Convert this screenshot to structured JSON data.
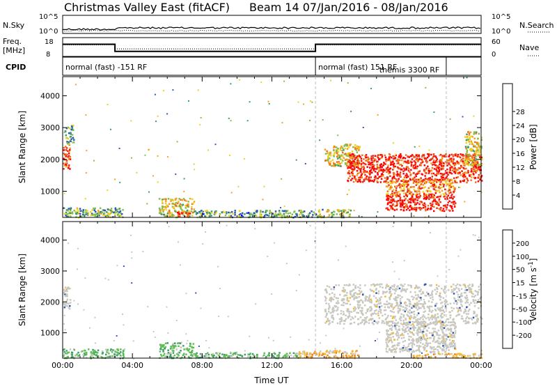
{
  "header": {
    "title_left": "Christmas Valley East (fitACF)",
    "title_right": "Beam 14  07/Jan/2016 - 08/Jan/2016"
  },
  "noise_panel": {
    "left_label": "N.Sky",
    "right_label": "N.Search",
    "left_ticks": [
      "10^5",
      "10^0"
    ],
    "right_ticks": [
      "10^5",
      "10^0"
    ]
  },
  "freq_panel": {
    "left_label_1": "Freq.",
    "left_label_2": "[MHz]",
    "right_label": "Nave",
    "left_ticks": [
      "18",
      "8"
    ],
    "right_ticks": [
      "60",
      "0"
    ],
    "freq_mhz": [
      {
        "t_start": 0.0,
        "t_end": 3.0,
        "value": 14.5
      },
      {
        "t_start": 3.0,
        "t_end": 14.5,
        "value": 10.7
      },
      {
        "t_start": 14.5,
        "t_end": 24.0,
        "value": 14.5
      }
    ],
    "nave": [
      {
        "t_start": 0.0,
        "t_end": 3.0,
        "value": 37
      },
      {
        "t_start": 3.0,
        "t_end": 14.5,
        "value": 24
      },
      {
        "t_start": 14.5,
        "t_end": 24.0,
        "value": 37
      }
    ]
  },
  "cpid_panel": {
    "label": "CPID",
    "segments": [
      {
        "t": 0.0,
        "text": "normal (fast) -151 RF"
      },
      {
        "t": 14.5,
        "text": "normal (fast) 151 RF"
      },
      {
        "t": 18.0,
        "text": "themis 3300 RF"
      }
    ],
    "dividers": [
      14.5,
      22.0
    ]
  },
  "chart_data": [
    {
      "type": "heatmap",
      "panel": "power",
      "ylabel": "Slant Range [km]",
      "xlabel": "",
      "xlim": [
        0,
        24
      ],
      "ylim": [
        180,
        4600
      ],
      "yticks": [
        1000,
        2000,
        3000,
        4000
      ],
      "colorbar": {
        "label": "Power [dB]",
        "ticks": [
          4,
          8,
          12,
          16,
          20,
          24,
          28
        ],
        "colors": [
          "#0000ff",
          "#2f56b4",
          "#3c9a6a",
          "#7fc050",
          "#f0d020",
          "#f5a020",
          "#f07020",
          "#e83020",
          "#ff0000"
        ],
        "range": [
          0,
          32
        ]
      },
      "regions": [
        {
          "t": [
            0.0,
            0.4
          ],
          "r": [
            1700,
            2500
          ],
          "level": 0.85
        },
        {
          "t": [
            0.1,
            0.6
          ],
          "r": [
            2500,
            3100
          ],
          "level": 0.25
        },
        {
          "t": [
            0.0,
            3.5
          ],
          "r": [
            200,
            500
          ],
          "level": 0.35
        },
        {
          "t": [
            5.5,
            7.5
          ],
          "r": [
            200,
            800
          ],
          "level": 0.5
        },
        {
          "t": [
            6.5,
            7.3
          ],
          "r": [
            220,
            380
          ],
          "level": 0.95
        },
        {
          "t": [
            7.5,
            14.5
          ],
          "r": [
            200,
            420
          ],
          "level": 0.3
        },
        {
          "t": [
            14.5,
            16.5
          ],
          "r": [
            200,
            450
          ],
          "level": 0.4
        },
        {
          "t": [
            15.0,
            17.0
          ],
          "r": [
            1800,
            2500
          ],
          "level": 0.55
        },
        {
          "t": [
            16.3,
            24.0
          ],
          "r": [
            1300,
            2200
          ],
          "level": 0.9
        },
        {
          "t": [
            18.5,
            22.5
          ],
          "r": [
            900,
            1400
          ],
          "level": 0.7
        },
        {
          "t": [
            18.5,
            22.5
          ],
          "r": [
            400,
            900
          ],
          "level": 0.95
        },
        {
          "t": [
            23.0,
            24.0
          ],
          "r": [
            1800,
            2900
          ],
          "level": 0.5
        }
      ]
    },
    {
      "type": "heatmap",
      "panel": "velocity",
      "ylabel": "Slant Range [km]",
      "xlabel": "Time UT",
      "xlim": [
        0,
        24
      ],
      "ylim": [
        180,
        4600
      ],
      "yticks": [
        1000,
        2000,
        3000,
        4000
      ],
      "xticks": [
        "00:00",
        "04:00",
        "08:00",
        "12:00",
        "16:00",
        "20:00",
        "00:00"
      ],
      "colorbar": {
        "label": "Velocity [m s^-1]",
        "ticks": [
          "200",
          "100",
          "50",
          "15",
          "-15",
          "-50",
          "-100",
          "-200"
        ],
        "colors": [
          "#2030c0",
          "#2f56b4",
          "#3c9a6a",
          "#5ec050",
          "#c8c8c0",
          "#f5b830",
          "#f58020",
          "#f05020",
          "#ff0000"
        ],
        "range": [
          -250,
          250
        ]
      },
      "regions": [
        {
          "t": [
            0.0,
            0.4
          ],
          "r": [
            1800,
            2500
          ],
          "kind": "gs"
        },
        {
          "t": [
            0.0,
            3.5
          ],
          "r": [
            200,
            500
          ],
          "kind": "pos"
        },
        {
          "t": [
            5.5,
            7.5
          ],
          "r": [
            200,
            700
          ],
          "kind": "pos"
        },
        {
          "t": [
            7.5,
            13.5
          ],
          "r": [
            200,
            380
          ],
          "kind": "pos"
        },
        {
          "t": [
            13.5,
            17.0
          ],
          "r": [
            200,
            450
          ],
          "kind": "neg"
        },
        {
          "t": [
            15.0,
            24.0
          ],
          "r": [
            1300,
            2600
          ],
          "kind": "gs"
        },
        {
          "t": [
            18.5,
            22.5
          ],
          "r": [
            400,
            1400
          ],
          "kind": "gs"
        },
        {
          "t": [
            20.0,
            24.0
          ],
          "r": [
            200,
            350
          ],
          "kind": "neg"
        }
      ]
    }
  ]
}
